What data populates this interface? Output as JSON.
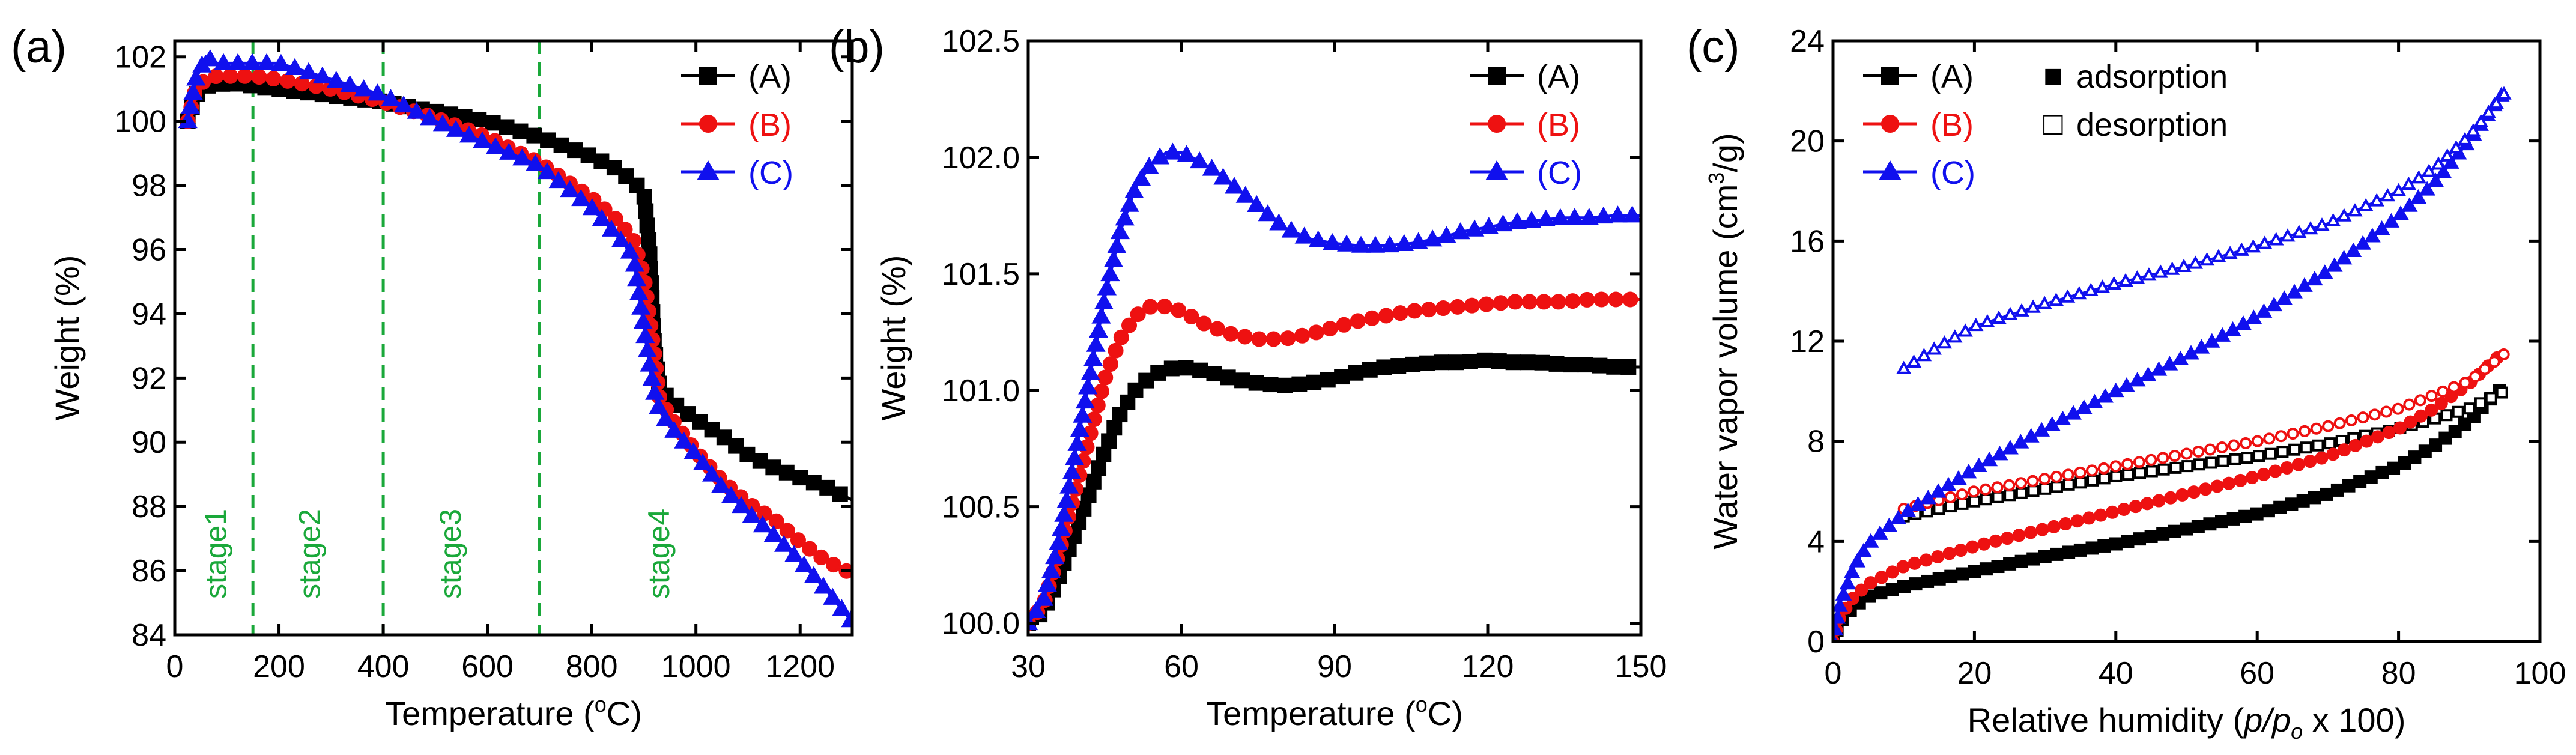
{
  "figure": {
    "colors": {
      "A": "#000000",
      "B": "#ee1111",
      "C": "#1010ee",
      "stage": "#1aa83a"
    }
  },
  "chart_data": [
    {
      "panel": "(a)",
      "type": "line",
      "xlabel": "Temperature (oC)",
      "ylabel": "Weight (%)",
      "xlim": [
        0,
        1300
      ],
      "ylim": [
        84,
        102.5
      ],
      "xticks": [
        0,
        200,
        400,
        600,
        800,
        1000,
        1200
      ],
      "yticks": [
        84,
        86,
        88,
        90,
        92,
        94,
        96,
        98,
        100,
        102
      ],
      "legend": {
        "position": "top-right",
        "entries": [
          "(A)",
          "(B)",
          "(C)"
        ]
      },
      "stage_lines": [
        150,
        400,
        700
      ],
      "stage_labels": [
        {
          "text": "stage1",
          "x": 80
        },
        {
          "text": "stage2",
          "x": 260
        },
        {
          "text": "stage3",
          "x": 530
        },
        {
          "text": "stage4",
          "x": 930
        }
      ],
      "series": [
        {
          "name": "(A)",
          "color": "#000000",
          "marker": "square",
          "x": [
            25,
            40,
            60,
            80,
            100,
            150,
            200,
            300,
            400,
            500,
            600,
            700,
            800,
            850,
            880,
            900,
            910,
            920,
            930,
            950,
            1000,
            1050,
            1100,
            1150,
            1200,
            1250,
            1300
          ],
          "y": [
            100.0,
            100.8,
            101.1,
            101.1,
            101.2,
            101.1,
            101.0,
            100.8,
            100.6,
            100.3,
            100.0,
            99.5,
            98.9,
            98.5,
            98.1,
            97.8,
            96.2,
            93.0,
            91.7,
            91.3,
            90.7,
            90.2,
            89.6,
            89.2,
            88.9,
            88.6,
            88.2
          ]
        },
        {
          "name": "(B)",
          "color": "#ee1111",
          "marker": "circle",
          "x": [
            25,
            40,
            60,
            80,
            100,
            150,
            200,
            300,
            400,
            500,
            600,
            700,
            800,
            850,
            880,
            900,
            910,
            920,
            930,
            950,
            1000,
            1050,
            1100,
            1150,
            1200,
            1250,
            1300
          ],
          "y": [
            100.0,
            101.0,
            101.3,
            101.4,
            101.4,
            101.4,
            101.3,
            101.0,
            100.6,
            100.1,
            99.5,
            98.7,
            97.6,
            96.9,
            96.3,
            95.2,
            94.0,
            92.8,
            91.4,
            90.8,
            89.7,
            88.8,
            88.1,
            87.6,
            86.9,
            86.3,
            85.9
          ]
        },
        {
          "name": "(C)",
          "color": "#1010ee",
          "marker": "triangle",
          "x": [
            25,
            40,
            60,
            80,
            100,
            150,
            200,
            300,
            400,
            500,
            600,
            700,
            800,
            850,
            880,
            900,
            910,
            920,
            930,
            950,
            1000,
            1050,
            1100,
            1150,
            1200,
            1250,
            1300
          ],
          "y": [
            100.0,
            101.3,
            102.0,
            101.8,
            101.8,
            101.8,
            101.8,
            101.3,
            100.8,
            100.0,
            99.3,
            98.6,
            97.3,
            96.4,
            95.8,
            93.6,
            92.5,
            91.6,
            91.0,
            90.5,
            89.6,
            88.6,
            87.8,
            87.1,
            86.3,
            85.4,
            84.4
          ]
        }
      ]
    },
    {
      "panel": "(b)",
      "type": "line",
      "xlabel": "Temperature (oC)",
      "ylabel": "Weight (%)",
      "xlim": [
        30,
        150
      ],
      "ylim": [
        99.95,
        102.5
      ],
      "xticks": [
        30,
        60,
        90,
        120,
        150
      ],
      "yticks": [
        100.0,
        100.5,
        101.0,
        101.5,
        102.0,
        102.5
      ],
      "ytick_labels": [
        "100.0",
        "100.5",
        "101.0",
        "101.5",
        "102.0",
        "102.5"
      ],
      "legend": {
        "position": "top-right",
        "entries": [
          "(A)",
          "(B)",
          "(C)"
        ]
      },
      "series": [
        {
          "name": "(A)",
          "color": "#000000",
          "marker": "square",
          "x": [
            30,
            33,
            36,
            39,
            42,
            45,
            48,
            51,
            54,
            57,
            60,
            65,
            70,
            75,
            80,
            85,
            90,
            95,
            100,
            105,
            110,
            115,
            120,
            125,
            130,
            135,
            140,
            145,
            150
          ],
          "y": [
            100.0,
            100.05,
            100.2,
            100.38,
            100.56,
            100.74,
            100.9,
            101.0,
            101.06,
            101.09,
            101.1,
            101.08,
            101.05,
            101.03,
            101.02,
            101.03,
            101.05,
            101.08,
            101.1,
            101.11,
            101.12,
            101.12,
            101.13,
            101.12,
            101.12,
            101.11,
            101.11,
            101.1,
            101.1
          ]
        },
        {
          "name": "(B)",
          "color": "#ee1111",
          "marker": "circle",
          "x": [
            30,
            33,
            36,
            39,
            42,
            45,
            48,
            51,
            54,
            57,
            60,
            65,
            70,
            75,
            80,
            85,
            90,
            95,
            100,
            105,
            110,
            115,
            120,
            125,
            130,
            135,
            140,
            145,
            150
          ],
          "y": [
            100.0,
            100.08,
            100.3,
            100.55,
            100.8,
            101.05,
            101.22,
            101.32,
            101.36,
            101.36,
            101.34,
            101.28,
            101.24,
            101.22,
            101.22,
            101.24,
            101.27,
            101.3,
            101.32,
            101.34,
            101.35,
            101.36,
            101.37,
            101.38,
            101.38,
            101.38,
            101.39,
            101.39,
            101.39
          ]
        },
        {
          "name": "(C)",
          "color": "#1010ee",
          "marker": "triangle",
          "x": [
            30,
            33,
            36,
            39,
            42,
            45,
            48,
            51,
            54,
            57,
            60,
            63,
            66,
            70,
            75,
            80,
            85,
            90,
            95,
            100,
            105,
            110,
            115,
            120,
            125,
            130,
            135,
            140,
            145,
            150
          ],
          "y": [
            100.0,
            100.1,
            100.35,
            100.7,
            101.05,
            101.4,
            101.68,
            101.87,
            101.97,
            102.02,
            102.02,
            101.99,
            101.95,
            101.88,
            101.79,
            101.7,
            101.65,
            101.63,
            101.62,
            101.62,
            101.63,
            101.65,
            101.68,
            101.7,
            101.72,
            101.73,
            101.74,
            101.74,
            101.75,
            101.75
          ]
        }
      ]
    },
    {
      "panel": "(c)",
      "type": "line",
      "xlabel": "Relative humidity (p/po x 100)",
      "ylabel": "Water vapor volume (cm3/g)",
      "xlim": [
        0,
        100
      ],
      "ylim": [
        0,
        24
      ],
      "xticks": [
        0,
        20,
        40,
        60,
        80,
        100
      ],
      "yticks": [
        0,
        4,
        8,
        12,
        16,
        20,
        24
      ],
      "legend": {
        "position": "top-left",
        "entries": [
          "(A)",
          "(B)",
          "(C)"
        ],
        "fill_legend": [
          {
            "symbol": "■",
            "text": "adsorption"
          },
          {
            "symbol": "□",
            "text": "desorption"
          }
        ]
      },
      "series": [
        {
          "name": "(A) adsorption",
          "color": "#000000",
          "marker": "square",
          "filled": true,
          "x": [
            0,
            1,
            3,
            5,
            10,
            20,
            30,
            40,
            50,
            60,
            70,
            80,
            85,
            90,
            93,
            95
          ],
          "y": [
            0,
            0.8,
            1.4,
            1.8,
            2.2,
            2.8,
            3.4,
            3.9,
            4.5,
            5.1,
            5.9,
            7.0,
            7.8,
            8.8,
            9.7,
            10.2
          ]
        },
        {
          "name": "(A) desorption",
          "color": "#000000",
          "marker": "square",
          "filled": false,
          "x": [
            10,
            20,
            30,
            40,
            50,
            60,
            70,
            80,
            90,
            95
          ],
          "y": [
            5.0,
            5.6,
            6.1,
            6.6,
            7.0,
            7.4,
            7.9,
            8.5,
            9.3,
            10.0
          ]
        },
        {
          "name": "(B) adsorption",
          "color": "#ee1111",
          "marker": "circle",
          "filled": true,
          "x": [
            0,
            1,
            3,
            5,
            10,
            20,
            30,
            40,
            50,
            60,
            70,
            80,
            85,
            90,
            93,
            95
          ],
          "y": [
            0,
            1.0,
            1.8,
            2.3,
            3.0,
            3.8,
            4.5,
            5.2,
            5.9,
            6.6,
            7.4,
            8.5,
            9.3,
            10.3,
            11.1,
            11.6
          ]
        },
        {
          "name": "(B) desorption",
          "color": "#ee1111",
          "marker": "circle",
          "filled": false,
          "x": [
            10,
            20,
            30,
            40,
            50,
            60,
            70,
            80,
            90,
            95
          ],
          "y": [
            5.3,
            6.0,
            6.5,
            7.0,
            7.5,
            8.0,
            8.6,
            9.3,
            10.4,
            11.5
          ]
        },
        {
          "name": "(C) adsorption",
          "color": "#1010ee",
          "marker": "triangle",
          "filled": true,
          "x": [
            0,
            1,
            3,
            5,
            10,
            20,
            30,
            40,
            50,
            60,
            70,
            80,
            85,
            90,
            93,
            95
          ],
          "y": [
            0,
            1.5,
            3.0,
            3.9,
            5.1,
            6.9,
            8.5,
            10.0,
            11.4,
            13.0,
            14.8,
            17.0,
            18.3,
            20.0,
            21.2,
            22.0
          ]
        },
        {
          "name": "(C) desorption",
          "color": "#1010ee",
          "marker": "triangle",
          "filled": false,
          "x": [
            10,
            15,
            20,
            30,
            40,
            50,
            60,
            70,
            80,
            85,
            90,
            95
          ],
          "y": [
            10.9,
            11.8,
            12.6,
            13.5,
            14.3,
            15.0,
            15.8,
            16.7,
            18.0,
            18.9,
            20.2,
            21.9
          ]
        }
      ]
    }
  ]
}
